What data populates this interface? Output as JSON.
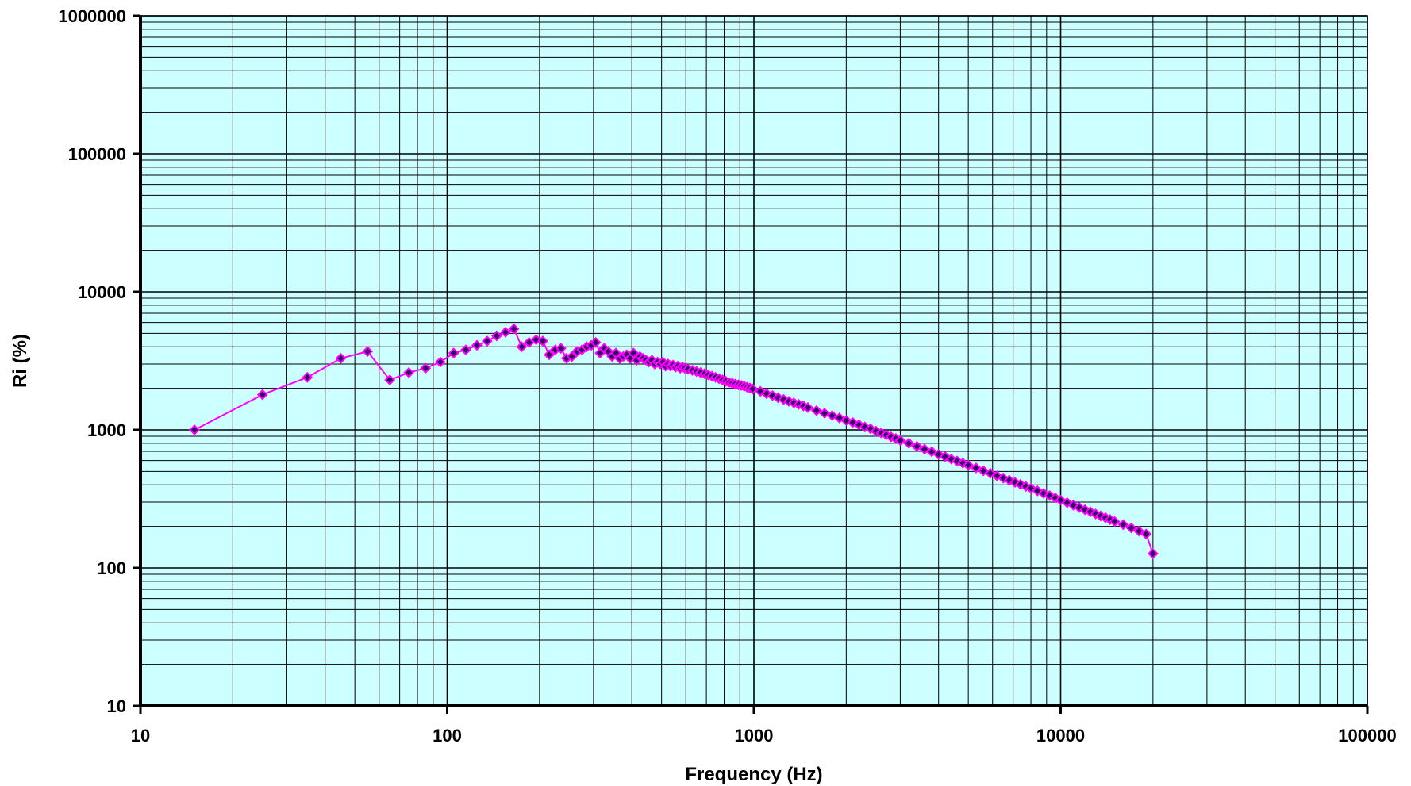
{
  "chart_data": {
    "type": "scatter",
    "title": "",
    "xlabel": "Frequency (Hz)",
    "ylabel": "Ri (%)",
    "x_scale": "log",
    "y_scale": "log",
    "xlim": [
      10,
      100000
    ],
    "ylim": [
      10,
      1000000
    ],
    "x_ticks": [
      "10",
      "100",
      "1000",
      "10000",
      "100000"
    ],
    "y_ticks": [
      "10",
      "100",
      "1000",
      "10000",
      "100000",
      "1000000"
    ],
    "grid": true,
    "legend": "none",
    "colors": {
      "plot_background": "#ccffff",
      "line": "#ff00ff",
      "marker": "#330066",
      "grid": "#000000"
    },
    "series": [
      {
        "marker": "diamond",
        "x": [
          15,
          25,
          35,
          45,
          55,
          65,
          75,
          85,
          95,
          105,
          115,
          125,
          135,
          145,
          155,
          165,
          175,
          185,
          195,
          205,
          215,
          225,
          235,
          245,
          255,
          265,
          275,
          285,
          295,
          305,
          315,
          325,
          335,
          345,
          355,
          365,
          375,
          385,
          395,
          405,
          415,
          425,
          435,
          445,
          455,
          465,
          475,
          485,
          495,
          505,
          515,
          525,
          535,
          545,
          555,
          565,
          575,
          585,
          595,
          610,
          630,
          650,
          670,
          690,
          710,
          730,
          750,
          770,
          790,
          810,
          830,
          850,
          870,
          890,
          910,
          930,
          950,
          970,
          990,
          1050,
          1100,
          1150,
          1200,
          1250,
          1300,
          1350,
          1400,
          1450,
          1500,
          1600,
          1700,
          1800,
          1900,
          2000,
          2100,
          2200,
          2300,
          2400,
          2500,
          2600,
          2700,
          2800,
          2900,
          3000,
          3200,
          3400,
          3600,
          3800,
          4000,
          4200,
          4400,
          4600,
          4800,
          5000,
          5300,
          5600,
          5900,
          6200,
          6500,
          6800,
          7100,
          7400,
          7700,
          8000,
          8400,
          8800,
          9200,
          9600,
          10000,
          10500,
          11000,
          11500,
          12000,
          12500,
          13000,
          13500,
          14000,
          14500,
          15000,
          16000,
          17000,
          18000,
          19000,
          20000
        ],
        "y": [
          1000,
          1800,
          2400,
          3300,
          3700,
          2300,
          2600,
          2800,
          3100,
          3600,
          3800,
          4100,
          4400,
          4800,
          5100,
          5400,
          4000,
          4300,
          4500,
          4400,
          3500,
          3800,
          3900,
          3300,
          3400,
          3700,
          3800,
          4000,
          4100,
          4300,
          3600,
          3900,
          3700,
          3400,
          3600,
          3300,
          3400,
          3500,
          3300,
          3600,
          3200,
          3400,
          3300,
          3200,
          3100,
          3200,
          3000,
          3100,
          3000,
          3100,
          2900,
          3000,
          2900,
          2950,
          2850,
          2900,
          2800,
          2850,
          2800,
          2750,
          2700,
          2650,
          2600,
          2550,
          2500,
          2450,
          2400,
          2350,
          2300,
          2250,
          2200,
          2180,
          2150,
          2120,
          2100,
          2070,
          2040,
          2010,
          1980,
          1900,
          1830,
          1770,
          1710,
          1660,
          1610,
          1570,
          1530,
          1490,
          1450,
          1380,
          1320,
          1270,
          1220,
          1170,
          1130,
          1090,
          1050,
          1020,
          980,
          950,
          920,
          890,
          865,
          840,
          800,
          760,
          725,
          695,
          665,
          640,
          615,
          595,
          575,
          555,
          530,
          505,
          485,
          465,
          448,
          432,
          417,
          403,
          390,
          378,
          362,
          347,
          334,
          322,
          310,
          297,
          285,
          274,
          264,
          255,
          246,
          238,
          231,
          224,
          217,
          206,
          195,
          185,
          176,
          127
        ]
      }
    ]
  }
}
